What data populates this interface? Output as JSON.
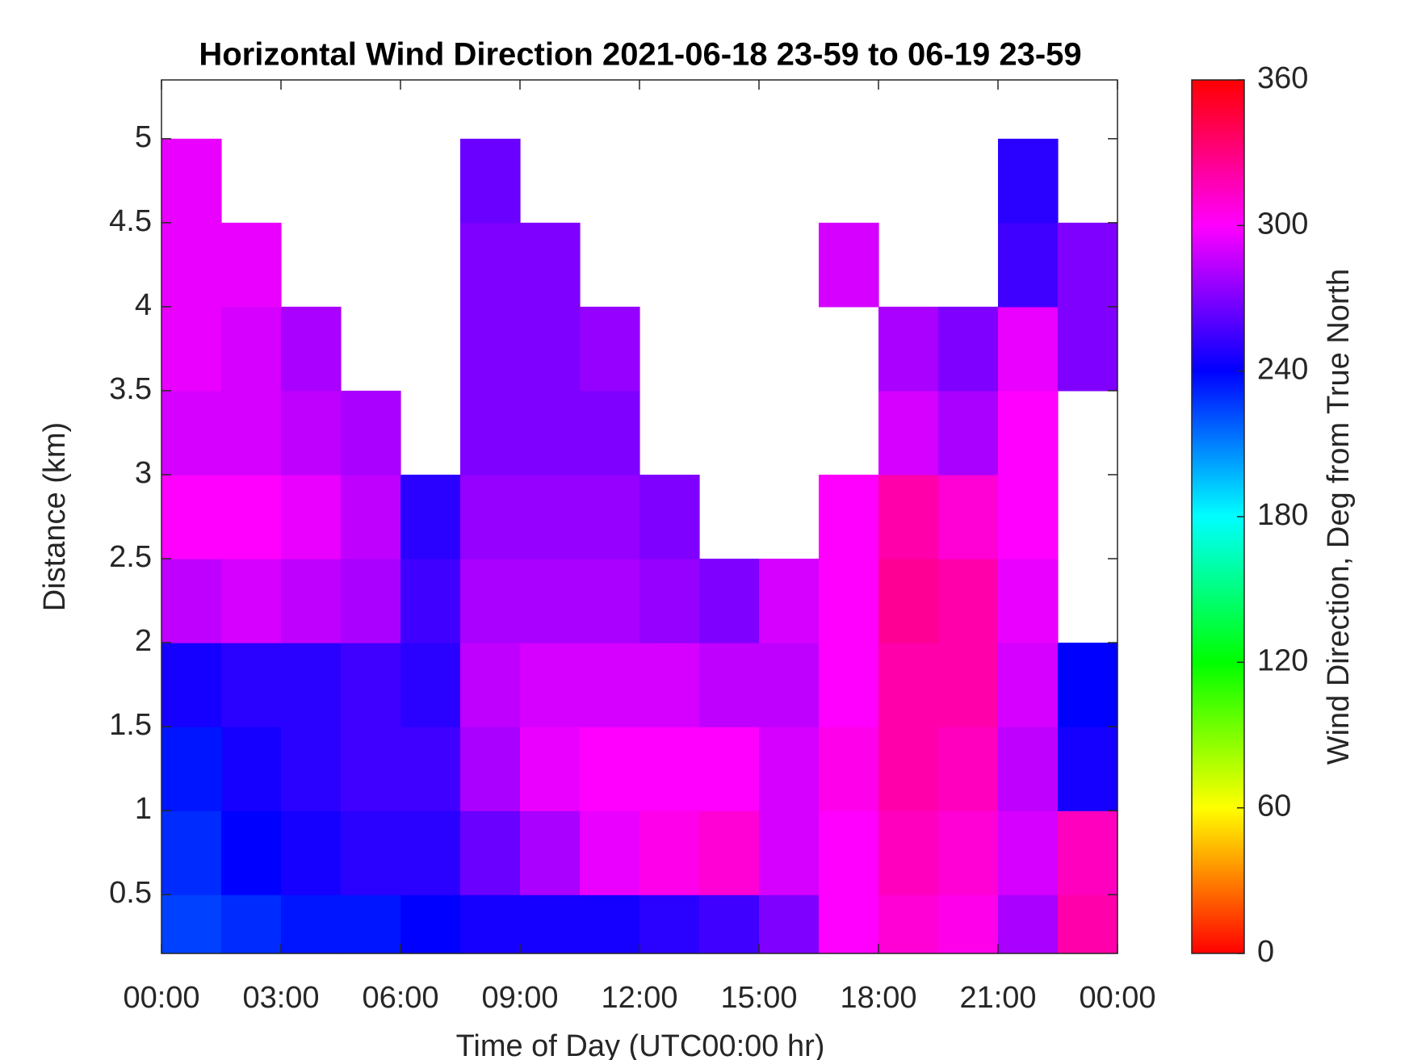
{
  "chart_data": {
    "type": "heatmap",
    "title": "Horizontal Wind Direction 2021-06-18 23-59 to 06-19 23-59",
    "x_label": "Time of Day (UTC00:00 hr)",
    "y_label": "Distance (km)",
    "colorbar_label": "Wind Direction, Deg from True North",
    "colormap": "hsv",
    "xlim": [
      0,
      24
    ],
    "xticks": [
      {
        "value": 0,
        "label": "00:00"
      },
      {
        "value": 3,
        "label": "03:00"
      },
      {
        "value": 6,
        "label": "06:00"
      },
      {
        "value": 9,
        "label": "09:00"
      },
      {
        "value": 12,
        "label": "12:00"
      },
      {
        "value": 15,
        "label": "15:00"
      },
      {
        "value": 18,
        "label": "18:00"
      },
      {
        "value": 21,
        "label": "21:00"
      },
      {
        "value": 24,
        "label": "00:00"
      }
    ],
    "ylim": [
      0.15,
      5.35
    ],
    "yticks": [
      0.5,
      1,
      1.5,
      2,
      2.5,
      3,
      3.5,
      4,
      4.5,
      5
    ],
    "clim": [
      0,
      360
    ],
    "cticks": [
      0,
      60,
      120,
      180,
      240,
      300,
      360
    ],
    "x_edges": [
      0,
      1.5,
      3,
      4.5,
      6,
      7.5,
      9,
      10.5,
      12,
      13.5,
      15,
      16.5,
      18,
      19.5,
      21,
      22.5,
      24
    ],
    "y_edges": [
      0.15,
      0.5,
      1,
      1.5,
      2,
      2.5,
      3,
      3.5,
      4,
      4.5,
      5,
      5.35
    ],
    "values": [
      [
        225,
        230,
        235,
        235,
        240,
        245,
        245,
        245,
        250,
        255,
        270,
        300,
        310,
        305,
        280,
        320
      ],
      [
        230,
        240,
        245,
        250,
        250,
        265,
        280,
        295,
        305,
        310,
        290,
        300,
        315,
        310,
        290,
        315
      ],
      [
        235,
        245,
        250,
        255,
        255,
        280,
        295,
        300,
        300,
        300,
        290,
        305,
        320,
        315,
        285,
        245
      ],
      [
        245,
        250,
        250,
        255,
        250,
        285,
        290,
        290,
        290,
        285,
        285,
        300,
        320,
        320,
        290,
        240
      ],
      [
        285,
        290,
        285,
        280,
        255,
        280,
        280,
        280,
        275,
        270,
        290,
        300,
        325,
        320,
        295,
        null
      ],
      [
        300,
        300,
        295,
        285,
        250,
        275,
        275,
        275,
        270,
        null,
        null,
        300,
        320,
        310,
        300,
        null
      ],
      [
        290,
        290,
        285,
        280,
        null,
        270,
        270,
        270,
        null,
        null,
        null,
        null,
        290,
        280,
        300,
        null
      ],
      [
        295,
        290,
        280,
        null,
        null,
        270,
        270,
        275,
        null,
        null,
        null,
        null,
        280,
        270,
        295,
        270
      ],
      [
        295,
        295,
        null,
        null,
        null,
        270,
        270,
        null,
        null,
        null,
        null,
        290,
        null,
        null,
        255,
        270
      ],
      [
        295,
        null,
        null,
        null,
        null,
        265,
        null,
        null,
        null,
        null,
        null,
        null,
        null,
        null,
        250,
        null
      ],
      [
        null,
        null,
        null,
        null,
        null,
        null,
        null,
        null,
        null,
        null,
        null,
        null,
        null,
        null,
        null,
        null
      ]
    ]
  }
}
